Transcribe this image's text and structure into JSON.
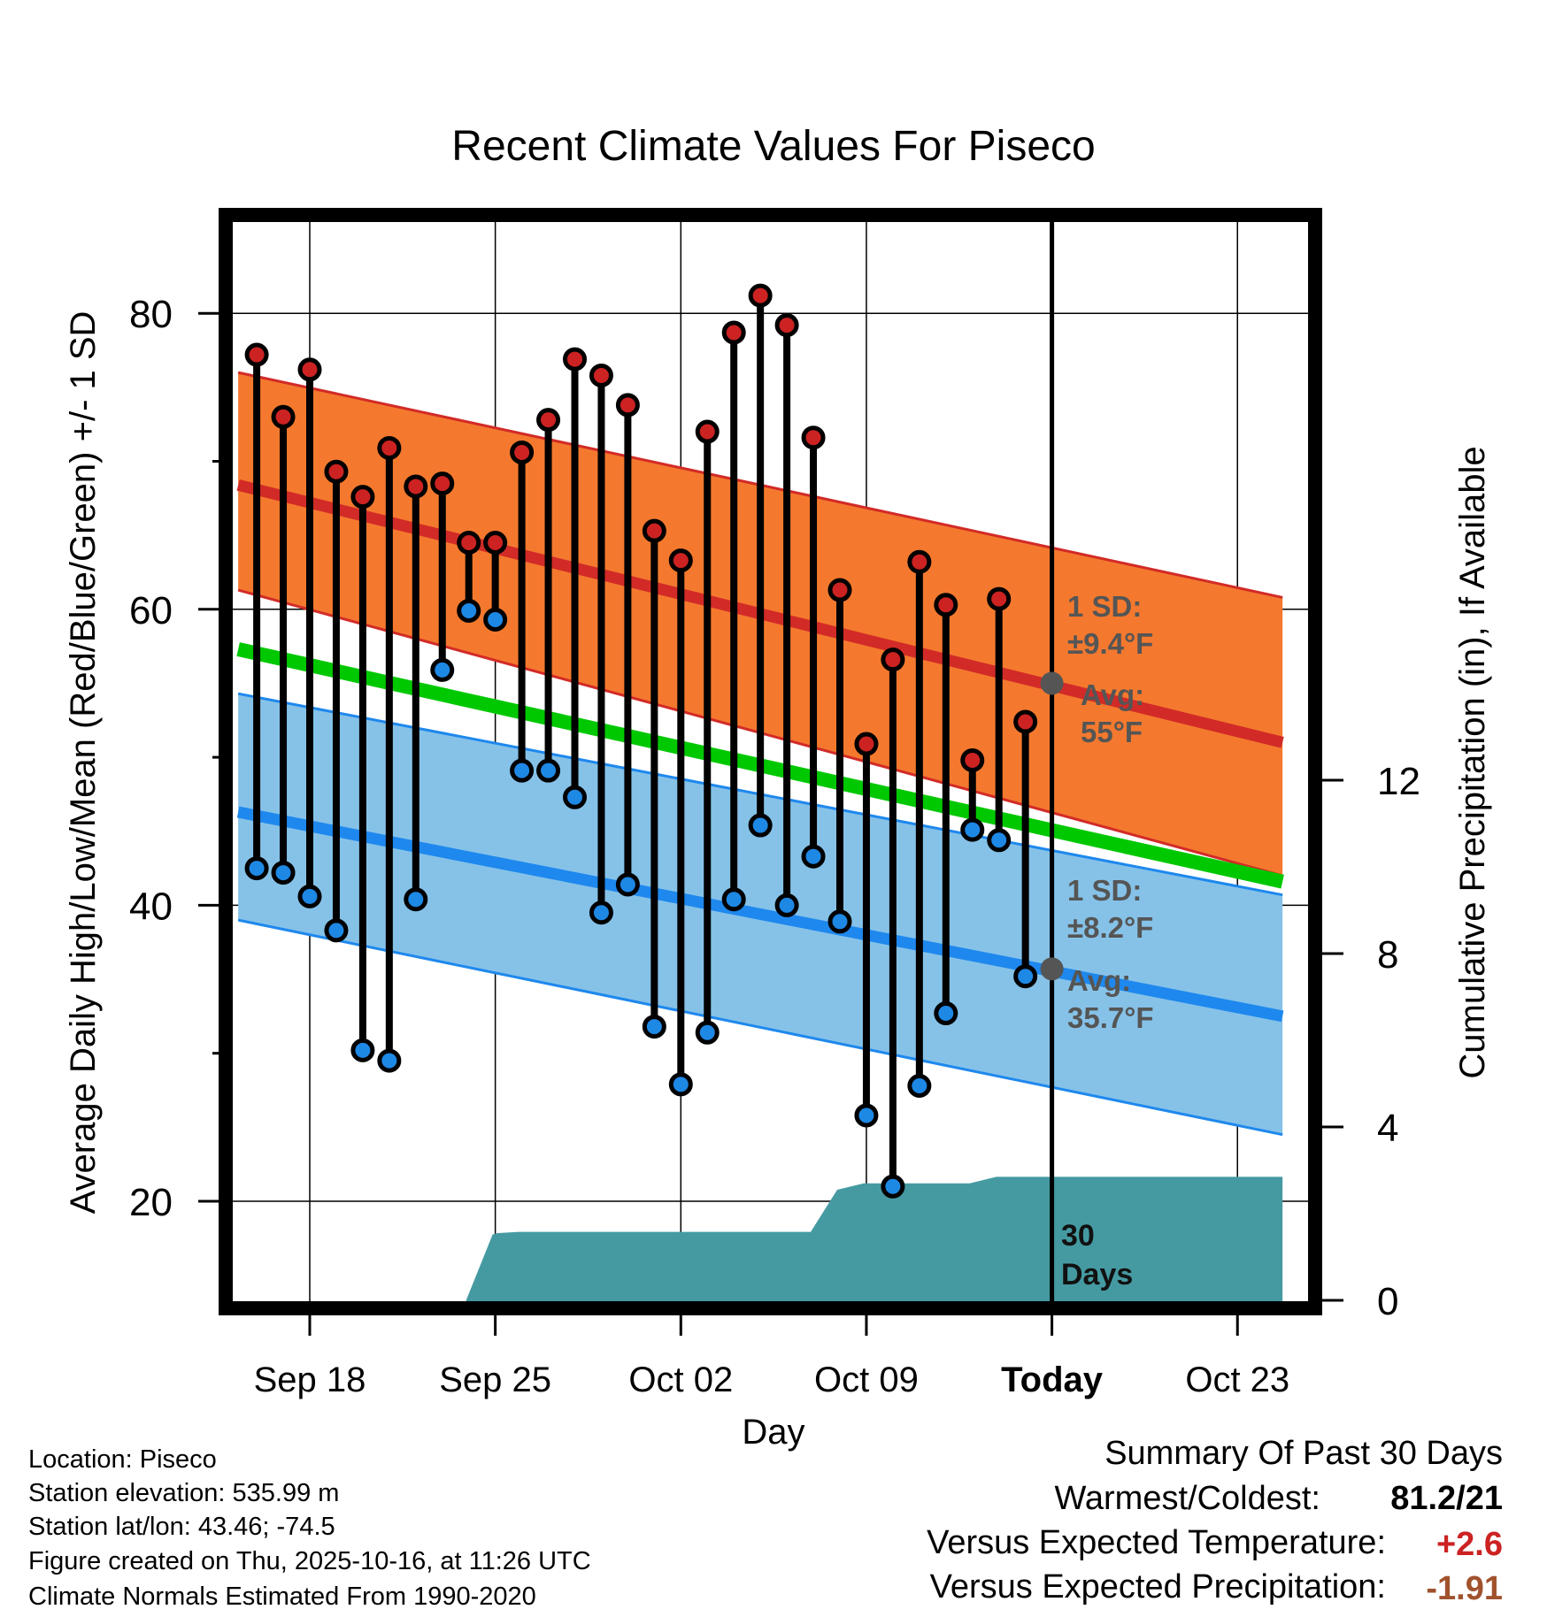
{
  "chart_data": {
    "type": "line",
    "title": "Recent Climate Values For Piseco",
    "xlabel": "Day",
    "ylabel": "Average Daily High/Low/Mean (Red/Blue/Green) +/- 1 SD",
    "ylabel_right": "Cumulative Precipitation (in), If Available",
    "ylim": [
      13.5,
      86.5
    ],
    "ylim_right": [
      0,
      25
    ],
    "xlim": [
      -3.2,
      37.2
    ],
    "x_ticks": [
      {
        "x": 0,
        "label": "Sep 18"
      },
      {
        "x": 7,
        "label": "Sep 25"
      },
      {
        "x": 14,
        "label": "Oct 02"
      },
      {
        "x": 21,
        "label": "Oct 09"
      },
      {
        "x": 28,
        "label": "Today"
      },
      {
        "x": 35,
        "label": "Oct 23"
      }
    ],
    "y_ticks": [
      20,
      40,
      60,
      80
    ],
    "y_ticks_right": [
      0,
      4,
      8,
      12
    ],
    "today_x": 28,
    "normals": {
      "x": [
        -2.7,
        36.7
      ],
      "high_mean": [
        68.4,
        51.0
      ],
      "high_upper": [
        76.0,
        60.8
      ],
      "high_lower": [
        61.3,
        42.0
      ],
      "mean_line": [
        57.3,
        41.6
      ],
      "low_mean": [
        46.3,
        32.5
      ],
      "low_upper": [
        54.3,
        40.7
      ],
      "low_lower": [
        39.0,
        24.5
      ]
    },
    "series": [
      {
        "name": "High",
        "color": "#cc2222",
        "x": [
          -2,
          -1,
          0,
          1,
          2,
          3,
          4,
          5,
          6,
          7,
          8,
          9,
          10,
          11,
          12,
          13,
          14,
          15,
          16,
          17,
          18,
          19,
          20,
          21,
          22,
          23,
          24,
          25,
          26,
          27
        ],
        "values": [
          77.2,
          73.0,
          76.2,
          69.3,
          67.6,
          70.9,
          68.3,
          68.5,
          64.5,
          64.5,
          70.6,
          72.8,
          76.9,
          75.8,
          73.8,
          65.3,
          63.3,
          72.0,
          78.7,
          81.2,
          79.2,
          71.6,
          61.3,
          50.9,
          56.6,
          63.2,
          60.3,
          49.8,
          60.7,
          52.4
        ]
      },
      {
        "name": "Low",
        "color": "#1e88e5",
        "x": [
          -2,
          -1,
          0,
          1,
          2,
          3,
          4,
          5,
          6,
          7,
          8,
          9,
          10,
          11,
          12,
          13,
          14,
          15,
          16,
          17,
          18,
          19,
          20,
          21,
          22,
          23,
          24,
          25,
          26,
          27
        ],
        "values": [
          42.5,
          42.2,
          40.6,
          38.3,
          30.2,
          29.5,
          40.4,
          55.9,
          59.9,
          59.3,
          49.1,
          49.1,
          47.3,
          39.5,
          41.4,
          31.8,
          27.9,
          31.4,
          40.4,
          45.4,
          40.0,
          43.3,
          38.9,
          25.8,
          21.0,
          27.8,
          32.7,
          45.1,
          44.4,
          35.2
        ]
      },
      {
        "name": "Cumulative Precipitation",
        "color": "#3d969e",
        "x": [
          5.9,
          6.9,
          7.1,
          7.9,
          8.9,
          9.9,
          10.9,
          11.9,
          12.9,
          13.9,
          14.9,
          15.9,
          16.9,
          17.9,
          18.9,
          19.9,
          20.9,
          21.9,
          22.9,
          23.9,
          24.9,
          25.9,
          26.9,
          27.9,
          36.7
        ],
        "values": [
          0,
          1.52,
          1.55,
          1.58,
          1.58,
          1.58,
          1.58,
          1.58,
          1.58,
          1.58,
          1.58,
          1.58,
          1.58,
          1.58,
          1.58,
          2.55,
          2.7,
          2.7,
          2.7,
          2.7,
          2.7,
          2.85,
          2.85,
          2.85,
          2.85
        ]
      }
    ],
    "annotations": {
      "high_sd_line1": "1 SD:",
      "high_sd_line2": "±9.4°F",
      "high_avg_line1": "Avg:",
      "high_avg_line2": "55°F",
      "high_avg_value": 55,
      "low_sd_line1": "1 SD:",
      "low_sd_line2": "±8.2°F",
      "low_avg_line1": "Avg:",
      "low_avg_line2": "35.7°F",
      "low_avg_value": 35.7,
      "period_line1": "30",
      "period_line2": "Days"
    }
  },
  "footer": {
    "location": "Location: Piseco",
    "elevation": "Station elevation: 535.99 m",
    "latlon": "Station lat/lon: 43.46; -74.5",
    "created": "Figure created on Thu, 2025-10-16, at 11:26 UTC",
    "normals": "Climate Normals Estimated From 1990-2020"
  },
  "summary": {
    "title": "Summary Of Past 30 Days",
    "warmest_label": "Warmest/Coldest:",
    "warmest_value": "81.2/21",
    "temp_label": "Versus Expected Temperature:",
    "temp_value": "+2.6",
    "precip_label": "Versus Expected Precipitation:",
    "precip_value": "-1.91"
  },
  "colors": {
    "high_band": "#f4792e",
    "high_line": "#d22b27",
    "low_band": "#86c2e8",
    "low_line": "#1e88ee",
    "mean_line": "#00c800",
    "precip_fill": "#459aa2",
    "high_dot": "#cc2222",
    "low_dot": "#1e88e5",
    "avg_dot": "#555555",
    "annotation_text": "#555555",
    "temp_delta": "#cc2222",
    "precip_delta": "#a0522d"
  }
}
